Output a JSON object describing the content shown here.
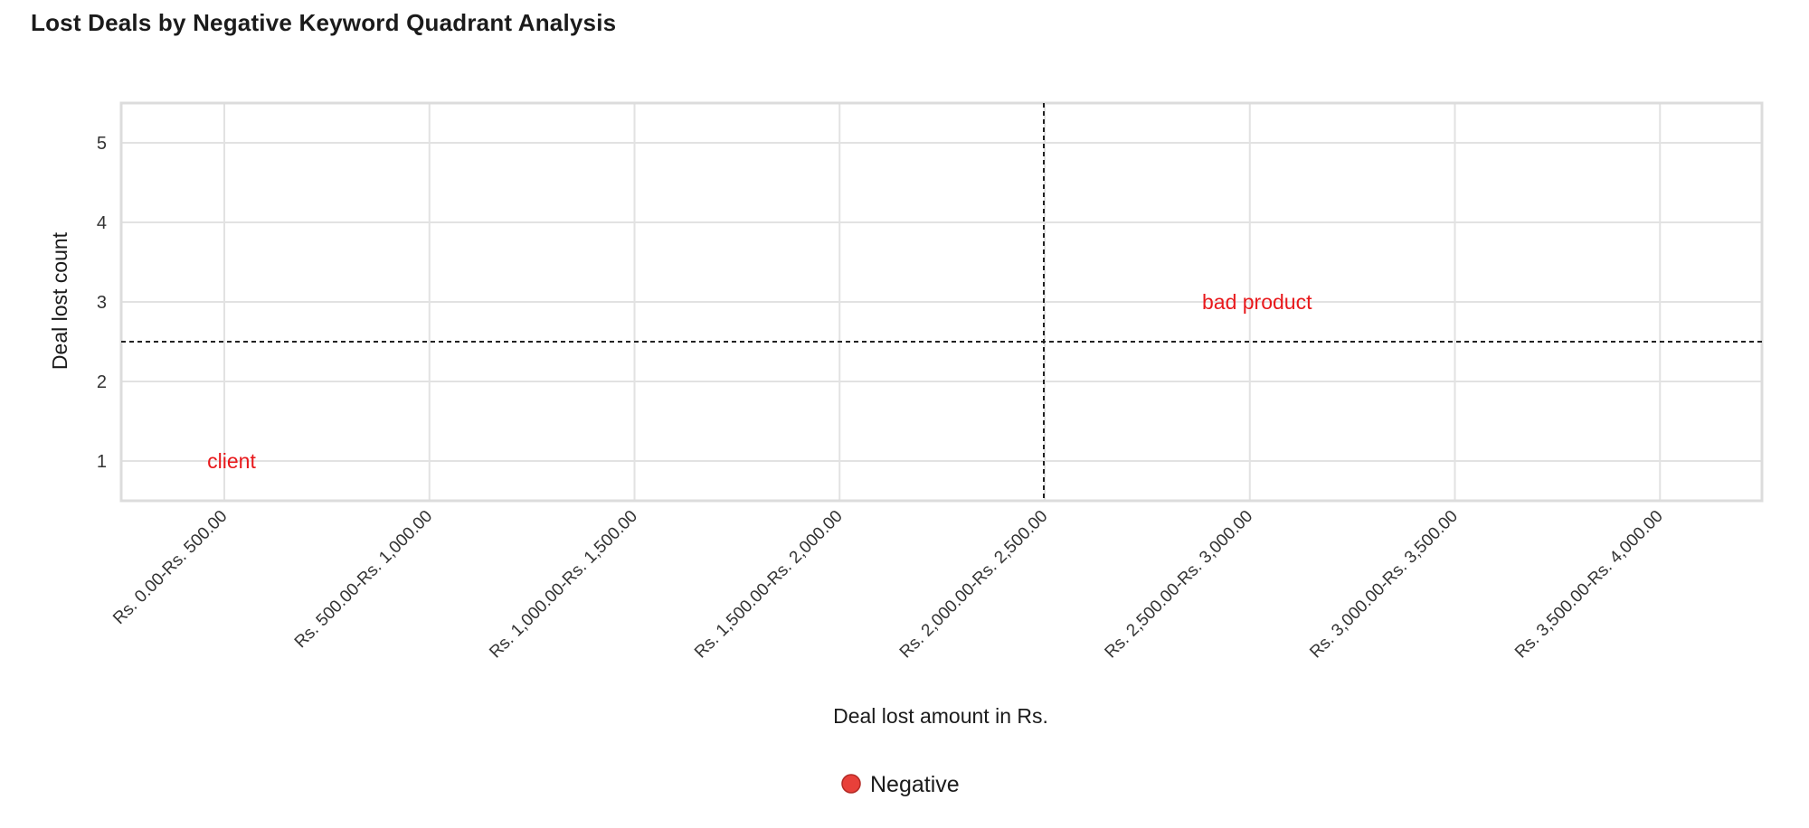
{
  "chart_data": {
    "type": "scatter",
    "title": "Lost Deals by Negative Keyword Quadrant Analysis",
    "xlabel": "Deal lost amount in Rs.",
    "ylabel": "Deal lost count",
    "categories": [
      "Rs. 0.00-Rs. 500.00",
      "Rs. 500.00-Rs. 1,000.00",
      "Rs. 1,000.00-Rs. 1,500.00",
      "Rs. 1,500.00-Rs. 2,000.00",
      "Rs. 2,000.00-Rs. 2,500.00",
      "Rs. 2,500.00-Rs. 3,000.00",
      "Rs. 3,000.00-Rs. 3,500.00",
      "Rs. 3,500.00-Rs. 4,000.00"
    ],
    "yticks": [
      1,
      2,
      3,
      4,
      5
    ],
    "ylim": [
      0.5,
      5.5
    ],
    "grid": true,
    "quadrant_lines": {
      "x_between_categories": 4,
      "y": 2.5
    },
    "series": [
      {
        "name": "Negative",
        "color": "#e8403a",
        "label_color": "#e8191c",
        "points": [
          {
            "category": "Rs. 0.00-Rs. 500.00",
            "y": 1,
            "label": "client"
          },
          {
            "category": "Rs. 2,500.00-Rs. 3,000.00",
            "y": 3,
            "label": "bad product"
          }
        ]
      }
    ],
    "legend_position": "bottom-center"
  }
}
